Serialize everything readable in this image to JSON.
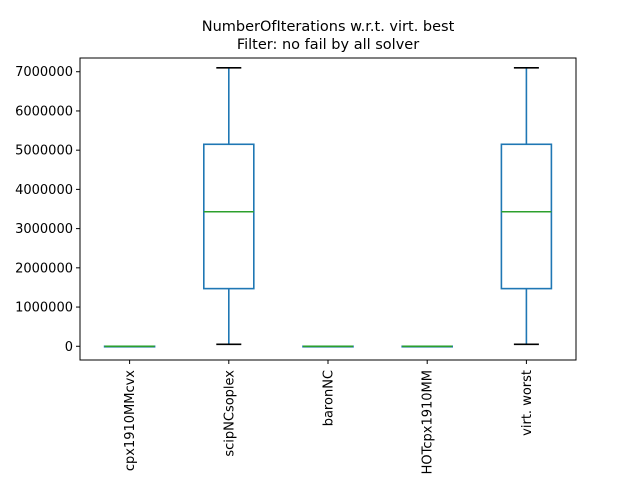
{
  "chart_data": {
    "type": "box",
    "title_line1": "NumberOfIterations w.r.t. virt. best",
    "title_line2": "Filter: no fail by all solver",
    "xlabel": "",
    "ylabel": "",
    "ylim": [
      -350000,
      7350000
    ],
    "yticks": [
      0,
      1000000,
      2000000,
      3000000,
      4000000,
      5000000,
      6000000,
      7000000
    ],
    "ytick_labels": [
      "0",
      "1000000",
      "2000000",
      "3000000",
      "4000000",
      "5000000",
      "6000000",
      "7000000"
    ],
    "categories": [
      "cpx1910MMcvx",
      "scipNCsoplex",
      "baronNC",
      "HOTcpx1910MM",
      "virt. worst"
    ],
    "boxes": [
      {
        "whisker_low": 0,
        "q1": 0,
        "median": 0,
        "q3": 0,
        "whisker_high": 0
      },
      {
        "whisker_low": 50000,
        "q1": 1470000,
        "median": 3430000,
        "q3": 5150000,
        "whisker_high": 7100000
      },
      {
        "whisker_low": 0,
        "q1": 0,
        "median": 0,
        "q3": 0,
        "whisker_high": 0
      },
      {
        "whisker_low": 0,
        "q1": 0,
        "median": 0,
        "q3": 0,
        "whisker_high": 0
      },
      {
        "whisker_low": 50000,
        "q1": 1470000,
        "median": 3430000,
        "q3": 5150000,
        "whisker_high": 7100000
      }
    ],
    "colors": {
      "box": "#1f77b4",
      "median": "#2ca02c",
      "whisker_cap": "#000000"
    },
    "grid": false,
    "legend": "none"
  }
}
